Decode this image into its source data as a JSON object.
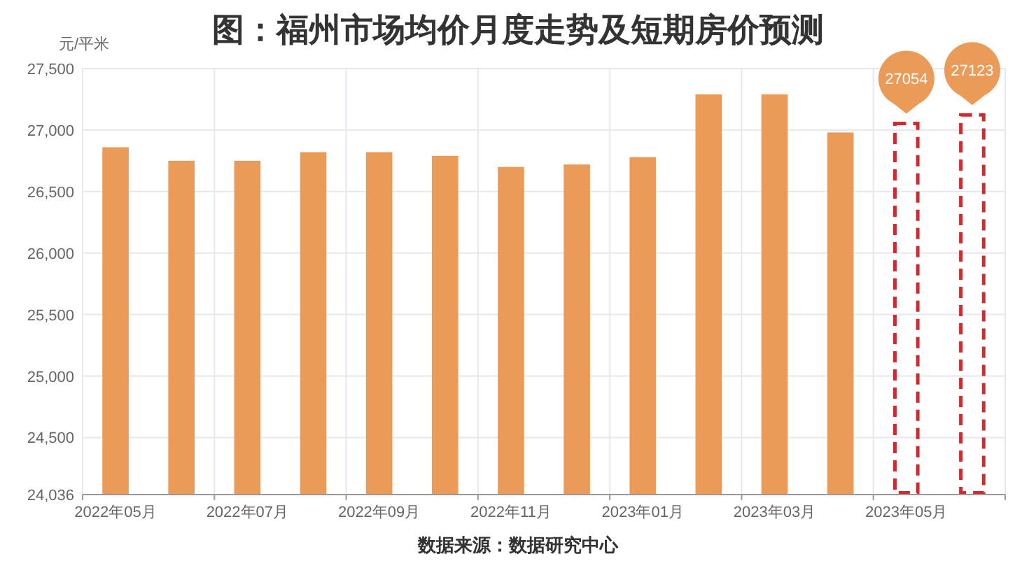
{
  "chart_data": {
    "type": "bar",
    "title": "图：福州市场均价月度走势及短期房价预测",
    "ylabel": "元/平米",
    "annotations": [
      "数据来源：数据研究中心"
    ],
    "categories": [
      "2022年05月",
      null,
      "2022年07月",
      null,
      "2022年09月",
      null,
      "2022年11月",
      null,
      "2023年01月",
      null,
      "2023年03月",
      null,
      "2023年05月",
      null
    ],
    "stacked": true,
    "series": [
      {
        "color": "#eb9b57",
        "values": [
          26860,
          26750,
          26750,
          26820,
          26820,
          26790,
          26700,
          26720,
          26780,
          27290,
          27290,
          26980,
          null,
          null
        ]
      },
      {
        "color": "#d42a2f",
        "line_style": "dashed",
        "values": [
          null,
          null,
          null,
          null,
          null,
          null,
          null,
          null,
          null,
          null,
          null,
          null,
          27054,
          27123
        ],
        "value_labels": [
          null,
          null,
          null,
          null,
          null,
          null,
          null,
          null,
          null,
          null,
          null,
          null,
          "27054",
          "27123"
        ]
      }
    ],
    "ylim": [
      24036,
      27500
    ],
    "yticks": [
      {
        "value": 24036,
        "label": "24,036"
      },
      {
        "value": 24500,
        "label": "24,500"
      },
      {
        "value": 25000,
        "label": "25,000"
      },
      {
        "value": 25500,
        "label": "25,500"
      },
      {
        "value": 26000,
        "label": "26,000"
      },
      {
        "value": 26500,
        "label": "26,500"
      },
      {
        "value": 27000,
        "label": "27,000"
      },
      {
        "value": 27500,
        "label": "27,500"
      }
    ],
    "grid": true
  }
}
